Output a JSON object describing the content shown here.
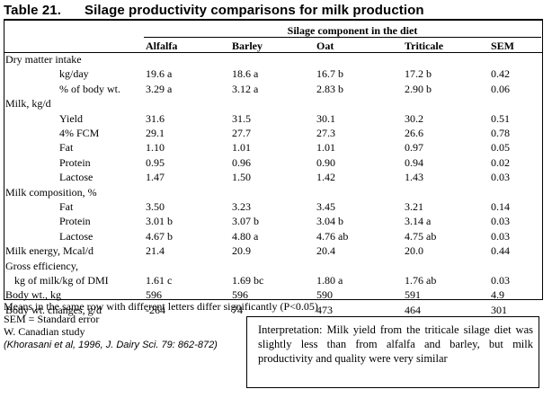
{
  "title": {
    "number": "Table 21.",
    "text": "Silage productivity comparisons for milk production"
  },
  "table": {
    "component_header": "Silage component in the diet",
    "columns": [
      "Alfalfa",
      "Barley",
      "Oat",
      "Triticale",
      "SEM"
    ],
    "rows": [
      {
        "label": "Dry matter intake",
        "indent": 0,
        "values": [
          "",
          "",
          "",
          "",
          ""
        ]
      },
      {
        "label": "kg/day",
        "indent": 2,
        "values": [
          "19.6 a",
          "18.6 a",
          "16.7 b",
          "17.2 b",
          "0.42"
        ]
      },
      {
        "label": "% of body wt.",
        "indent": 2,
        "values": [
          "3.29 a",
          "3.12 a",
          "2.83 b",
          "2.90 b",
          "0.06"
        ]
      },
      {
        "label": "Milk, kg/d",
        "indent": 0,
        "values": [
          "",
          "",
          "",
          "",
          ""
        ]
      },
      {
        "label": "Yield",
        "indent": 2,
        "values": [
          "31.6",
          "31.5",
          "30.1",
          "30.2",
          "0.51"
        ]
      },
      {
        "label": "4% FCM",
        "indent": 2,
        "values": [
          "29.1",
          "27.7",
          "27.3",
          "26.6",
          "0.78"
        ]
      },
      {
        "label": "Fat",
        "indent": 2,
        "values": [
          "1.10",
          "1.01",
          "1.01",
          "0.97",
          "0.05"
        ]
      },
      {
        "label": "Protein",
        "indent": 2,
        "values": [
          "0.95",
          "0.96",
          "0.90",
          "0.94",
          "0.02"
        ]
      },
      {
        "label": "Lactose",
        "indent": 2,
        "values": [
          "1.47",
          "1.50",
          "1.42",
          "1.43",
          "0.03"
        ]
      },
      {
        "label": "Milk composition, %",
        "indent": 0,
        "values": [
          "",
          "",
          "",
          "",
          ""
        ]
      },
      {
        "label": "Fat",
        "indent": 2,
        "values": [
          "3.50",
          "3.23",
          "3.45",
          "3.21",
          "0.14"
        ]
      },
      {
        "label": "Protein",
        "indent": 2,
        "values": [
          "3.01 b",
          "3.07 b",
          "3.04 b",
          "3.14 a",
          "0.03"
        ]
      },
      {
        "label": "Lactose",
        "indent": 2,
        "values": [
          "4.67 b",
          "4.80 a",
          "4.76 ab",
          "4.75 ab",
          "0.03"
        ]
      },
      {
        "label": "Milk energy, Mcal/d",
        "indent": 0,
        "values": [
          "21.4",
          "20.9",
          "20.4",
          "20.0",
          "0.44"
        ]
      },
      {
        "label": "Gross efficiency,",
        "indent": 0,
        "values": [
          "",
          "",
          "",
          "",
          ""
        ]
      },
      {
        "label": "kg of milk/kg of DMI",
        "indent": 1,
        "values": [
          "1.61 c",
          "1.69 bc",
          "1.80 a",
          "1.76 ab",
          "0.03"
        ]
      },
      {
        "label": "Body wt., kg",
        "indent": 0,
        "values": [
          "596",
          "596",
          "590",
          "591",
          "4.9"
        ]
      },
      {
        "label": "Body wt. changes, g/d",
        "indent": 0,
        "values": [
          "-264",
          "74",
          "473",
          "464",
          "301"
        ]
      }
    ]
  },
  "notes": {
    "letters": "Means in the same row with different letters differ significantly (P<0.05)",
    "sem": "SEM = Standard error",
    "study": "W. Canadian study",
    "citation": "(Khorasani et al, 1996, J. Dairy Sci.  79: 862-872)"
  },
  "interpretation": "Interpretation:   Milk yield from the triticale silage diet was slightly less than from alfalfa and barley, but milk productivity and quality were very similar"
}
